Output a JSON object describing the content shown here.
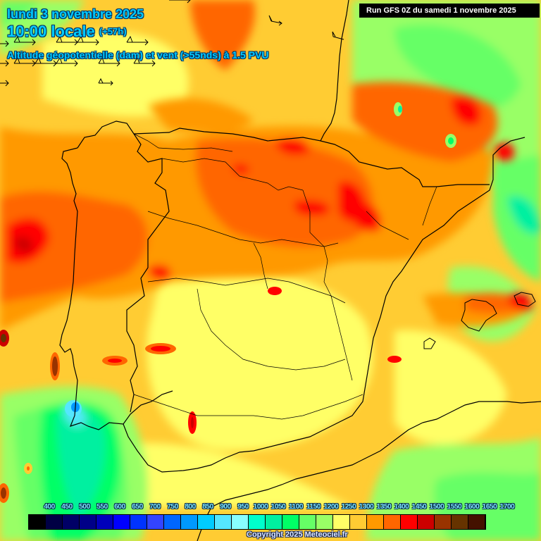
{
  "header": {
    "date": "lundi 3 novembre 2025",
    "time": "10:00 locale",
    "lead": "(+57h)",
    "description": "Altitude géopotentielle (dam) et vent (>55nds) à 1.5 PVU",
    "run": "Run GFS 0Z du samedi 1 novembre 2025"
  },
  "map": {
    "region": "Iberian Peninsula",
    "parameter": "Geopotential height (dam) at 1.5 PVU",
    "wind_threshold": ">55nds",
    "features": [
      "country borders",
      "region borders",
      "wind barbs"
    ]
  },
  "legend": {
    "labels": [
      "400",
      "450",
      "500",
      "550",
      "600",
      "650",
      "700",
      "750",
      "800",
      "850",
      "900",
      "950",
      "1000",
      "1050",
      "1100",
      "1150",
      "1200",
      "1250",
      "1300",
      "1350",
      "1400",
      "1450",
      "1500",
      "1550",
      "1600",
      "1650",
      "1700"
    ],
    "colors": [
      "#000000",
      "#000044",
      "#000066",
      "#000088",
      "#0000bb",
      "#0000ff",
      "#0033ff",
      "#3344ff",
      "#0066ff",
      "#0099ff",
      "#00ccff",
      "#55e6ff",
      "#88ffff",
      "#00ffcc",
      "#00f0a0",
      "#00ff66",
      "#66ff66",
      "#99ff66",
      "#ffff66",
      "#ffcc33",
      "#ff9900",
      "#ff6600",
      "#ff0000",
      "#cc0000",
      "#993300",
      "#663300",
      "#441100"
    ]
  },
  "footer": {
    "copyright": "Copyright 2025 Meteociel.fr"
  }
}
